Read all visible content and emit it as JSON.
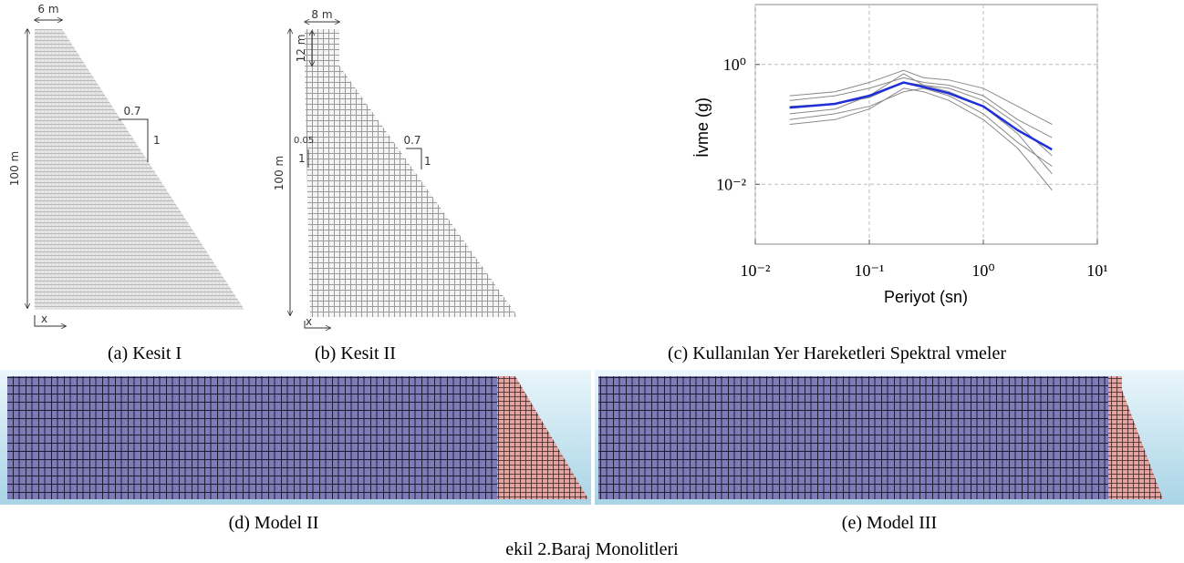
{
  "kesit_1": {
    "caption": "(a)  Kesit I",
    "width_label": "6 m",
    "height_label": "100 m",
    "slope_h": "0.7",
    "slope_v": "1",
    "axis_label": "x"
  },
  "kesit_2": {
    "caption": "(b)  Kesit II",
    "width_label": "8 m",
    "crest_label": "12 m",
    "height_label": "100 m",
    "up_slope_h": "0.05",
    "up_slope_v": "1",
    "slope_h": "0.7",
    "slope_v": "1",
    "axis_label": "x"
  },
  "chart_data": {
    "type": "line",
    "caption": "(c)  Kullanılan Yer Hareketleri Spektral  vmeler",
    "x_label": "Periyot (sn)",
    "y_label": "İvme (g)",
    "log_x": true,
    "log_y": true,
    "grid": true,
    "xlim": [
      0.01,
      10
    ],
    "ylim": [
      0.001,
      10
    ],
    "xticks": [
      {
        "value": 0.01,
        "label": "10⁻²"
      },
      {
        "value": 0.1,
        "label": "10⁻¹"
      },
      {
        "value": 1,
        "label": "10⁰"
      },
      {
        "value": 10,
        "label": "10¹"
      }
    ],
    "yticks": [
      {
        "value": 0.01,
        "label": "10⁻²"
      },
      {
        "value": 1,
        "label": "10⁰"
      }
    ],
    "x": [
      0.02,
      0.05,
      0.1,
      0.2,
      0.3,
      0.5,
      1,
      2,
      4
    ],
    "series": [
      {
        "color": "#8a8a8a",
        "values": [
          0.25,
          0.3,
          0.4,
          0.6,
          0.5,
          0.45,
          0.3,
          0.12,
          0.06
        ]
      },
      {
        "color": "#8a8a8a",
        "values": [
          0.12,
          0.15,
          0.2,
          0.35,
          0.4,
          0.3,
          0.15,
          0.05,
          0.02
        ]
      },
      {
        "color": "#8a8a8a",
        "values": [
          0.3,
          0.35,
          0.5,
          0.8,
          0.6,
          0.55,
          0.4,
          0.2,
          0.1
        ]
      },
      {
        "color": "#8a8a8a",
        "values": [
          0.1,
          0.12,
          0.18,
          0.4,
          0.35,
          0.25,
          0.12,
          0.04,
          0.008
        ]
      },
      {
        "color": "#8a8a8a",
        "values": [
          0.2,
          0.22,
          0.28,
          0.5,
          0.45,
          0.4,
          0.25,
          0.1,
          0.03
        ]
      },
      {
        "color": "#8a8a8a",
        "values": [
          0.15,
          0.18,
          0.3,
          0.7,
          0.45,
          0.35,
          0.2,
          0.07,
          0.015
        ]
      },
      {
        "color": "#1f2fd8",
        "values": [
          0.19,
          0.22,
          0.3,
          0.5,
          0.42,
          0.33,
          0.2,
          0.08,
          0.038
        ]
      }
    ]
  },
  "model_2": {
    "caption": "(d)  Model II"
  },
  "model_3": {
    "caption": "(e)  Model III"
  },
  "figure_caption": "ekil 2.Baraj Monolitleri"
}
